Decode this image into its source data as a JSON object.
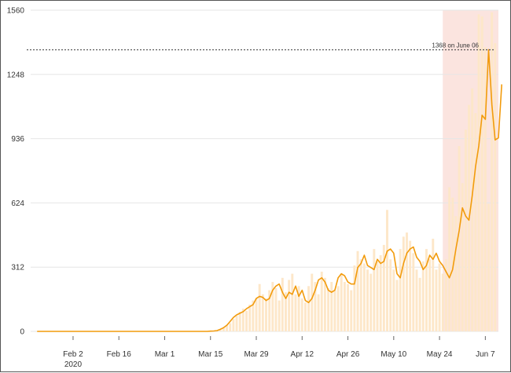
{
  "chart_data": {
    "type": "bar+line",
    "title": "",
    "xlabel": "",
    "ylabel": "",
    "ylim": [
      0,
      1560
    ],
    "y_ticks": [
      "0",
      "312",
      "624",
      "936",
      "1248",
      "1560"
    ],
    "x_ticks": [
      {
        "date": "2020-02-02",
        "label": "Feb 2",
        "sublabel": "2020"
      },
      {
        "date": "2020-02-16",
        "label": "Feb 16"
      },
      {
        "date": "2020-03-01",
        "label": "Mar 1"
      },
      {
        "date": "2020-03-15",
        "label": "Mar 15"
      },
      {
        "date": "2020-03-29",
        "label": "Mar 29"
      },
      {
        "date": "2020-04-12",
        "label": "Apr 12"
      },
      {
        "date": "2020-04-26",
        "label": "Apr 26"
      },
      {
        "date": "2020-05-10",
        "label": "May 10"
      },
      {
        "date": "2020-05-24",
        "label": "May 24"
      },
      {
        "date": "2020-06-07",
        "label": "Jun 7"
      }
    ],
    "x_range": [
      "2020-01-21",
      "2020-06-11"
    ],
    "grid": "horizontal",
    "highlight_period": {
      "start": "2020-05-25",
      "end": "2020-06-11",
      "color": "#fbe4df"
    },
    "peak_annotation": {
      "text": "1368 on June 06",
      "value": 1368,
      "date": "2020-06-06"
    },
    "colors": {
      "bars": "#fde7c9",
      "line": "#f29b0c",
      "highlight": "#fbe4df",
      "reference_line": "#333333",
      "grid": "#e6e6e6"
    },
    "series": [
      {
        "type": "bar",
        "start_date": "2020-01-22",
        "values": [
          0,
          0,
          0,
          0,
          0,
          0,
          0,
          0,
          0,
          0,
          0,
          0,
          0,
          0,
          0,
          0,
          0,
          0,
          0,
          0,
          0,
          0,
          0,
          0,
          0,
          0,
          0,
          0,
          0,
          0,
          0,
          0,
          0,
          0,
          0,
          0,
          0,
          0,
          0,
          0,
          0,
          0,
          0,
          0,
          0,
          0,
          0,
          0,
          0,
          0,
          0,
          0,
          1,
          2,
          2,
          5,
          10,
          20,
          30,
          40,
          60,
          75,
          95,
          110,
          100,
          130,
          150,
          160,
          230,
          180,
          160,
          200,
          240,
          210,
          150,
          260,
          190,
          250,
          280,
          180,
          220,
          160,
          140,
          220,
          280,
          240,
          180,
          290,
          260,
          210,
          240,
          200,
          220,
          280,
          240,
          230,
          200,
          320,
          390,
          350,
          330,
          300,
          280,
          400,
          340,
          370,
          420,
          590,
          350,
          300,
          250,
          400,
          460,
          480,
          440,
          380,
          300,
          260,
          340,
          400,
          350,
          450,
          300,
          330,
          280,
          350,
          700,
          650,
          560,
          900,
          720,
          980,
          1100,
          1180,
          1060,
          1540,
          1530,
          1380,
          620,
          1550,
          1400
        ]
      },
      {
        "type": "line",
        "start_date": "2020-01-22",
        "values": [
          0,
          0,
          0,
          0,
          0,
          0,
          0,
          0,
          0,
          0,
          0,
          0,
          0,
          0,
          0,
          0,
          0,
          0,
          0,
          0,
          0,
          0,
          0,
          0,
          0,
          0,
          0,
          0,
          0,
          0,
          0,
          0,
          0,
          0,
          0,
          0,
          0,
          0,
          0,
          0,
          0,
          0,
          0,
          0,
          0,
          0,
          0,
          0,
          0,
          0,
          0,
          0,
          0,
          1,
          2,
          4,
          10,
          18,
          30,
          48,
          68,
          80,
          88,
          96,
          110,
          120,
          130,
          160,
          170,
          165,
          150,
          160,
          200,
          220,
          230,
          190,
          160,
          190,
          180,
          220,
          170,
          200,
          150,
          140,
          160,
          200,
          250,
          260,
          240,
          200,
          190,
          200,
          260,
          280,
          270,
          240,
          230,
          230,
          310,
          330,
          370,
          320,
          310,
          300,
          350,
          330,
          340,
          390,
          400,
          380,
          280,
          260,
          330,
          380,
          400,
          410,
          360,
          340,
          300,
          320,
          370,
          350,
          380,
          340,
          320,
          290,
          260,
          300,
          400,
          490,
          600,
          560,
          540,
          660,
          800,
          900,
          1050,
          1030,
          1368,
          1100,
          930,
          940,
          1200
        ]
      }
    ]
  }
}
